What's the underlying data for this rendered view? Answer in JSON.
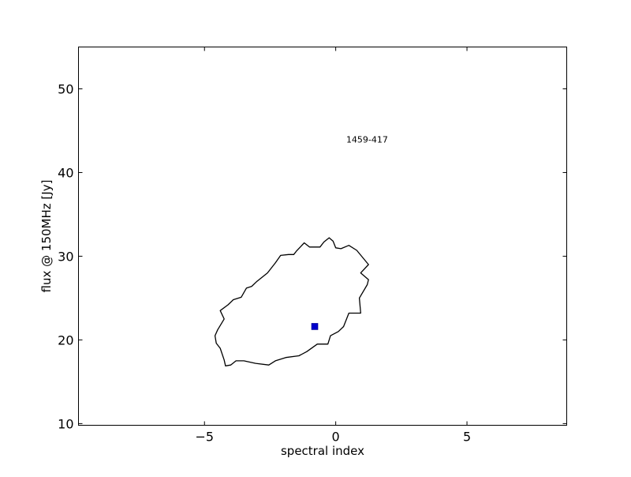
{
  "chart_data": {
    "type": "scatter",
    "title": "",
    "xlabel": "spectral index",
    "ylabel": "flux @ 150MHz [Jy]",
    "xlim": [
      -9.8,
      8.8
    ],
    "ylim": [
      9.8,
      55
    ],
    "xticks": [
      {
        "value": -5,
        "label": "−5"
      },
      {
        "value": 0,
        "label": "0"
      },
      {
        "value": 5,
        "label": "5"
      }
    ],
    "yticks": [
      {
        "value": 10,
        "label": "10"
      },
      {
        "value": 20,
        "label": "20"
      },
      {
        "value": 30,
        "label": "30"
      },
      {
        "value": 40,
        "label": "40"
      },
      {
        "value": 50,
        "label": "50"
      }
    ],
    "grid": false,
    "annotation": {
      "text": "1459-417",
      "x": 0.4,
      "y": 43.6
    },
    "point": {
      "x": -0.8,
      "y": 21.6,
      "color": "#0000cc"
    },
    "contour": {
      "color": "#000000",
      "points": [
        [
          -0.25,
          32.2
        ],
        [
          -0.1,
          31.8
        ],
        [
          0.0,
          31.0
        ],
        [
          0.2,
          30.9
        ],
        [
          0.5,
          31.3
        ],
        [
          0.8,
          30.7
        ],
        [
          1.25,
          29.0
        ],
        [
          0.95,
          28.0
        ],
        [
          1.25,
          27.2
        ],
        [
          1.2,
          26.6
        ],
        [
          0.9,
          25.0
        ],
        [
          0.95,
          23.2
        ],
        [
          0.5,
          23.2
        ],
        [
          0.3,
          21.6
        ],
        [
          0.1,
          21.0
        ],
        [
          -0.2,
          20.5
        ],
        [
          -0.3,
          19.5
        ],
        [
          -0.7,
          19.5
        ],
        [
          -1.1,
          18.6
        ],
        [
          -1.4,
          18.1
        ],
        [
          -1.9,
          17.9
        ],
        [
          -2.3,
          17.5
        ],
        [
          -2.55,
          17.0
        ],
        [
          -3.05,
          17.2
        ],
        [
          -3.5,
          17.5
        ],
        [
          -3.8,
          17.5
        ],
        [
          -4.0,
          17.0
        ],
        [
          -4.2,
          16.9
        ],
        [
          -4.25,
          17.6
        ],
        [
          -4.4,
          19.0
        ],
        [
          -4.55,
          19.6
        ],
        [
          -4.6,
          20.5
        ],
        [
          -4.5,
          21.2
        ],
        [
          -4.25,
          22.5
        ],
        [
          -4.4,
          23.5
        ],
        [
          -4.1,
          24.2
        ],
        [
          -3.9,
          24.8
        ],
        [
          -3.6,
          25.1
        ],
        [
          -3.4,
          26.2
        ],
        [
          -3.2,
          26.4
        ],
        [
          -3.0,
          27.0
        ],
        [
          -2.6,
          28.0
        ],
        [
          -2.3,
          29.2
        ],
        [
          -2.1,
          30.1
        ],
        [
          -1.8,
          30.2
        ],
        [
          -1.6,
          30.2
        ],
        [
          -1.5,
          30.6
        ],
        [
          -1.2,
          31.6
        ],
        [
          -1.0,
          31.1
        ],
        [
          -0.6,
          31.1
        ],
        [
          -0.45,
          31.7
        ]
      ]
    }
  }
}
